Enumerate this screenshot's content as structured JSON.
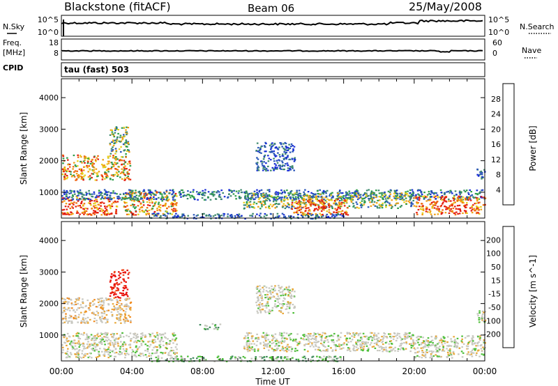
{
  "header": {
    "station": "Blackstone (fitACF)",
    "beam": "Beam 06",
    "date": "25/May/2008"
  },
  "status_panels": {
    "nsky": {
      "label": "N.Sky",
      "ticks": [
        "10^5",
        "10^0"
      ],
      "right_label": "N.Search",
      "right_ticks": [
        "10^5",
        "10^0"
      ]
    },
    "freq": {
      "label_line1": "Freq.",
      "label_line2": "[MHz]",
      "ticks": [
        "18",
        "8"
      ],
      "right_label": "Nave",
      "right_ticks": [
        "60",
        "0"
      ]
    },
    "cpid": {
      "label": "CPID",
      "mode": "tau (fast) 503"
    }
  },
  "colors": {
    "power": [
      "#1a2fd6",
      "#2a56b8",
      "#3f8a6e",
      "#2f9d4a",
      "#e8cf1d",
      "#f0a014",
      "#f06a0e",
      "#e41f10"
    ],
    "velocity": [
      "#2a3cc8",
      "#2e6aa8",
      "#3f8a5c",
      "#4fbf3a",
      "#c8c8c0",
      "#e8a83a",
      "#f08a1e",
      "#f0461a",
      "#e8140e"
    ]
  },
  "chart_data": [
    {
      "type": "heatmap",
      "title": "Power",
      "ylabel": "Slant Range [km]",
      "xlabel": "",
      "x_ticks": [
        "00:00",
        "04:00",
        "08:00",
        "12:00",
        "16:00",
        "20:00",
        "00:00"
      ],
      "xlim": [
        0,
        24
      ],
      "y_ticks": [
        "1000",
        "2000",
        "3000",
        "4000"
      ],
      "ylim": [
        180,
        4600
      ],
      "colorbar": {
        "label": "Power [dB]",
        "ticks": [
          "4",
          "8",
          "12",
          "16",
          "20",
          "24",
          "28"
        ]
      },
      "regions": [
        {
          "t": [
            0.0,
            3.9
          ],
          "r": [
            1400,
            2200
          ],
          "level": "medium-high"
        },
        {
          "t": [
            2.7,
            3.8
          ],
          "r": [
            2200,
            3100
          ],
          "level": "medium"
        },
        {
          "t": [
            0.0,
            3.2
          ],
          "r": [
            300,
            900
          ],
          "level": "high"
        },
        {
          "t": [
            3.5,
            6.5
          ],
          "r": [
            300,
            1050
          ],
          "level": "medium-high"
        },
        {
          "t": [
            0.0,
            24.0
          ],
          "r": [
            780,
            1100
          ],
          "level": "low-medium"
        },
        {
          "t": [
            5.0,
            16.0
          ],
          "r": [
            180,
            350
          ],
          "level": "low"
        },
        {
          "t": [
            11.0,
            13.2
          ],
          "r": [
            1700,
            2600
          ],
          "level": "low"
        },
        {
          "t": [
            10.3,
            20.0
          ],
          "r": [
            500,
            1000
          ],
          "level": "medium"
        },
        {
          "t": [
            13.0,
            16.2
          ],
          "r": [
            300,
            800
          ],
          "level": "high"
        },
        {
          "t": [
            20.0,
            24.0
          ],
          "r": [
            300,
            900
          ],
          "level": "high"
        },
        {
          "t": [
            23.5,
            24.0
          ],
          "r": [
            1400,
            1800
          ],
          "level": "low"
        }
      ]
    },
    {
      "type": "heatmap",
      "title": "Velocity",
      "ylabel": "Slant Range [km]",
      "xlabel": "Time UT",
      "x_ticks": [
        "00:00",
        "04:00",
        "08:00",
        "12:00",
        "16:00",
        "20:00",
        "00:00"
      ],
      "xlim": [
        0,
        24
      ],
      "y_ticks": [
        "1000",
        "2000",
        "3000",
        "4000"
      ],
      "ylim": [
        180,
        4600
      ],
      "colorbar": {
        "label": "Velocity [m s^-1]",
        "ticks": [
          "200",
          "100",
          "50",
          "15",
          "-15",
          "-50",
          "-100",
          "-200"
        ]
      },
      "regions": [
        {
          "t": [
            0.0,
            3.9
          ],
          "r": [
            1400,
            2200
          ],
          "level": "near-zero / -50"
        },
        {
          "t": [
            2.7,
            3.8
          ],
          "r": [
            2200,
            3100
          ],
          "level": "-200"
        },
        {
          "t": [
            0.0,
            6.5
          ],
          "r": [
            300,
            1100
          ],
          "level": "near-zero"
        },
        {
          "t": [
            5.0,
            16.0
          ],
          "r": [
            180,
            350
          ],
          "level": "50"
        },
        {
          "t": [
            7.8,
            9.0
          ],
          "r": [
            1200,
            1400
          ],
          "level": "50"
        },
        {
          "t": [
            11.0,
            13.2
          ],
          "r": [
            1700,
            2600
          ],
          "level": "near-zero"
        },
        {
          "t": [
            10.3,
            20.0
          ],
          "r": [
            500,
            1100
          ],
          "level": "near-zero"
        },
        {
          "t": [
            20.0,
            24.0
          ],
          "r": [
            300,
            1000
          ],
          "level": "near-zero"
        },
        {
          "t": [
            23.5,
            24.0
          ],
          "r": [
            1400,
            1800
          ],
          "level": "near-zero"
        }
      ]
    }
  ]
}
